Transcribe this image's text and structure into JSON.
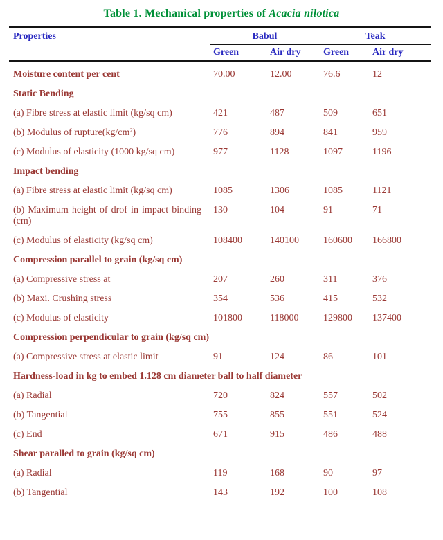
{
  "caption": {
    "prefix": "Table 1. Mechanical properties of ",
    "species": "Acacia nilotica"
  },
  "table": {
    "header": {
      "properties_label": "Properties",
      "groups": [
        {
          "label": "Babul",
          "subcols": [
            "Green",
            "Air dry"
          ]
        },
        {
          "label": "Teak",
          "subcols": [
            "Green",
            "Air dry"
          ]
        }
      ]
    },
    "rows": [
      {
        "style": "bold",
        "label": "Moisture content per cent",
        "values": [
          "70.00",
          "12.00",
          "76.6",
          "12"
        ]
      },
      {
        "style": "section",
        "label": "Static Bending"
      },
      {
        "style": "plain",
        "label": "(a) Fibre stress at elastic limit (kg/sq cm)",
        "values": [
          "421",
          "487",
          "509",
          "651"
        ]
      },
      {
        "style": "plain",
        "label": "(b) Modulus of rupture(kg/cm²)",
        "values": [
          "776",
          "894",
          "841",
          "959"
        ]
      },
      {
        "style": "plain",
        "label": "(c) Modulus of elasticity (1000 kg/sq cm)",
        "values": [
          "977",
          "1128",
          "1097",
          "1196"
        ]
      },
      {
        "style": "section",
        "label": "Impact bending"
      },
      {
        "style": "plain",
        "label": "(a) Fibre stress at elastic limit (kg/sq cm)",
        "values": [
          "1085",
          "1306",
          "1085",
          "1121"
        ]
      },
      {
        "style": "plain",
        "label": "(b) Maximum height of drof in impact binding (cm)",
        "values": [
          "130",
          "104",
          "91",
          "71"
        ]
      },
      {
        "style": "plain",
        "label": "(c) Modulus of elasticity (kg/sq cm)",
        "values": [
          "108400",
          "140100",
          "160600",
          "166800"
        ]
      },
      {
        "style": "section",
        "label": "Compression parallel to grain (kg/sq cm)"
      },
      {
        "style": "plain",
        "label": "(a) Compressive stress at",
        "values": [
          "207",
          "260",
          "311",
          "376"
        ]
      },
      {
        "style": "plain",
        "label": "(b) Maxi. Crushing stress",
        "values": [
          "354",
          "536",
          "415",
          "532"
        ]
      },
      {
        "style": "plain",
        "label": "(c) Modulus of elasticity",
        "values": [
          "101800",
          "118000",
          "129800",
          "137400"
        ]
      },
      {
        "style": "section",
        "label": "Compression perpendicular to grain (kg/sq cm)"
      },
      {
        "style": "plain",
        "label": "(a) Compressive stress at elastic limit",
        "values": [
          "91",
          "124",
          "86",
          "101"
        ]
      },
      {
        "style": "section",
        "label": "Hardness-load in kg to embed 1.128 cm diameter ball to half diameter"
      },
      {
        "style": "plain",
        "label": "(a) Radial",
        "values": [
          "720",
          "824",
          "557",
          "502"
        ]
      },
      {
        "style": "plain",
        "label": "(b) Tangential",
        "values": [
          "755",
          "855",
          "551",
          "524"
        ]
      },
      {
        "style": "plain",
        "label": "(c) End",
        "values": [
          "671",
          "915",
          "486",
          "488"
        ]
      },
      {
        "style": "section",
        "label": "Shear paralled to grain (kg/sq cm)"
      },
      {
        "style": "plain",
        "label": "(a) Radial",
        "values": [
          "119",
          "168",
          "90",
          "97"
        ]
      },
      {
        "style": "plain",
        "label": "(b) Tangential",
        "values": [
          "143",
          "192",
          "100",
          "108"
        ]
      }
    ]
  },
  "colors": {
    "title_green": "#009038",
    "header_blue": "#2929C0",
    "body_maroon": "#9A3834",
    "border_black": "#141414"
  }
}
